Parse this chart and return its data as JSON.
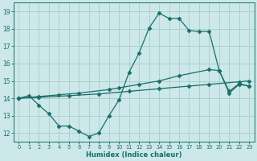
{
  "xlabel": "Humidex (Indice chaleur)",
  "background_color": "#cce8e8",
  "grid_color": "#aacccc",
  "line_color": "#1a6e6a",
  "xlim": [
    -0.5,
    23.5
  ],
  "ylim": [
    11.5,
    19.5
  ],
  "xticks": [
    0,
    1,
    2,
    3,
    4,
    5,
    6,
    7,
    8,
    9,
    10,
    11,
    12,
    13,
    14,
    15,
    16,
    17,
    18,
    19,
    20,
    21,
    22,
    23
  ],
  "yticks": [
    12,
    13,
    14,
    15,
    16,
    17,
    18,
    19
  ],
  "line1_x": [
    0,
    1,
    2,
    3,
    4,
    5,
    6,
    7,
    8,
    9,
    10,
    11,
    12,
    13,
    14,
    15,
    16,
    17,
    18,
    19,
    20,
    21,
    22,
    23
  ],
  "line1_y": [
    14.0,
    14.15,
    13.6,
    13.1,
    12.4,
    12.4,
    12.1,
    11.8,
    12.0,
    13.0,
    13.9,
    15.5,
    16.6,
    18.05,
    18.9,
    18.6,
    18.6,
    17.9,
    17.85,
    17.85,
    15.6,
    14.3,
    14.8,
    14.7
  ],
  "line2_x": [
    0,
    2,
    4,
    6,
    9,
    10,
    12,
    14,
    16,
    19,
    20,
    21,
    22,
    23
  ],
  "line2_y": [
    14.0,
    14.1,
    14.2,
    14.3,
    14.5,
    14.6,
    14.8,
    15.0,
    15.3,
    15.65,
    15.6,
    14.4,
    14.85,
    14.7
  ],
  "line3_x": [
    0,
    2,
    5,
    8,
    11,
    14,
    17,
    19,
    22,
    23
  ],
  "line3_y": [
    14.0,
    14.05,
    14.15,
    14.25,
    14.4,
    14.55,
    14.7,
    14.8,
    14.95,
    15.0
  ]
}
